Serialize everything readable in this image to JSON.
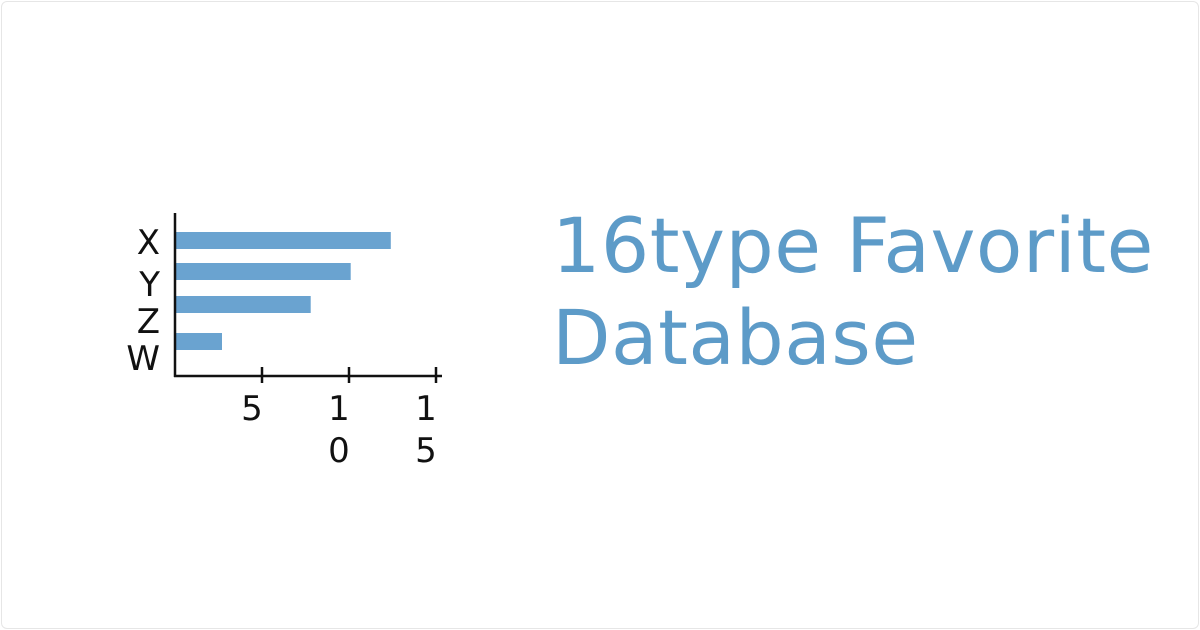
{
  "title": {
    "line1": "16type Favorite",
    "line2": "Database"
  },
  "colors": {
    "accent": "#5d9bc8",
    "bar": "#6aa3d0",
    "axis": "#111111"
  },
  "logo_chart": {
    "type": "bar",
    "orientation": "horizontal",
    "categories": [
      "X",
      "Y",
      "Z",
      "W"
    ],
    "values": [
      12.4,
      10.1,
      7.8,
      2.7
    ],
    "xlim": [
      0,
      15.5
    ],
    "tick_values": [
      5,
      10,
      15
    ],
    "tick_lines": [
      [
        "5"
      ],
      [
        "1",
        "0"
      ],
      [
        "1",
        "5"
      ]
    ]
  }
}
